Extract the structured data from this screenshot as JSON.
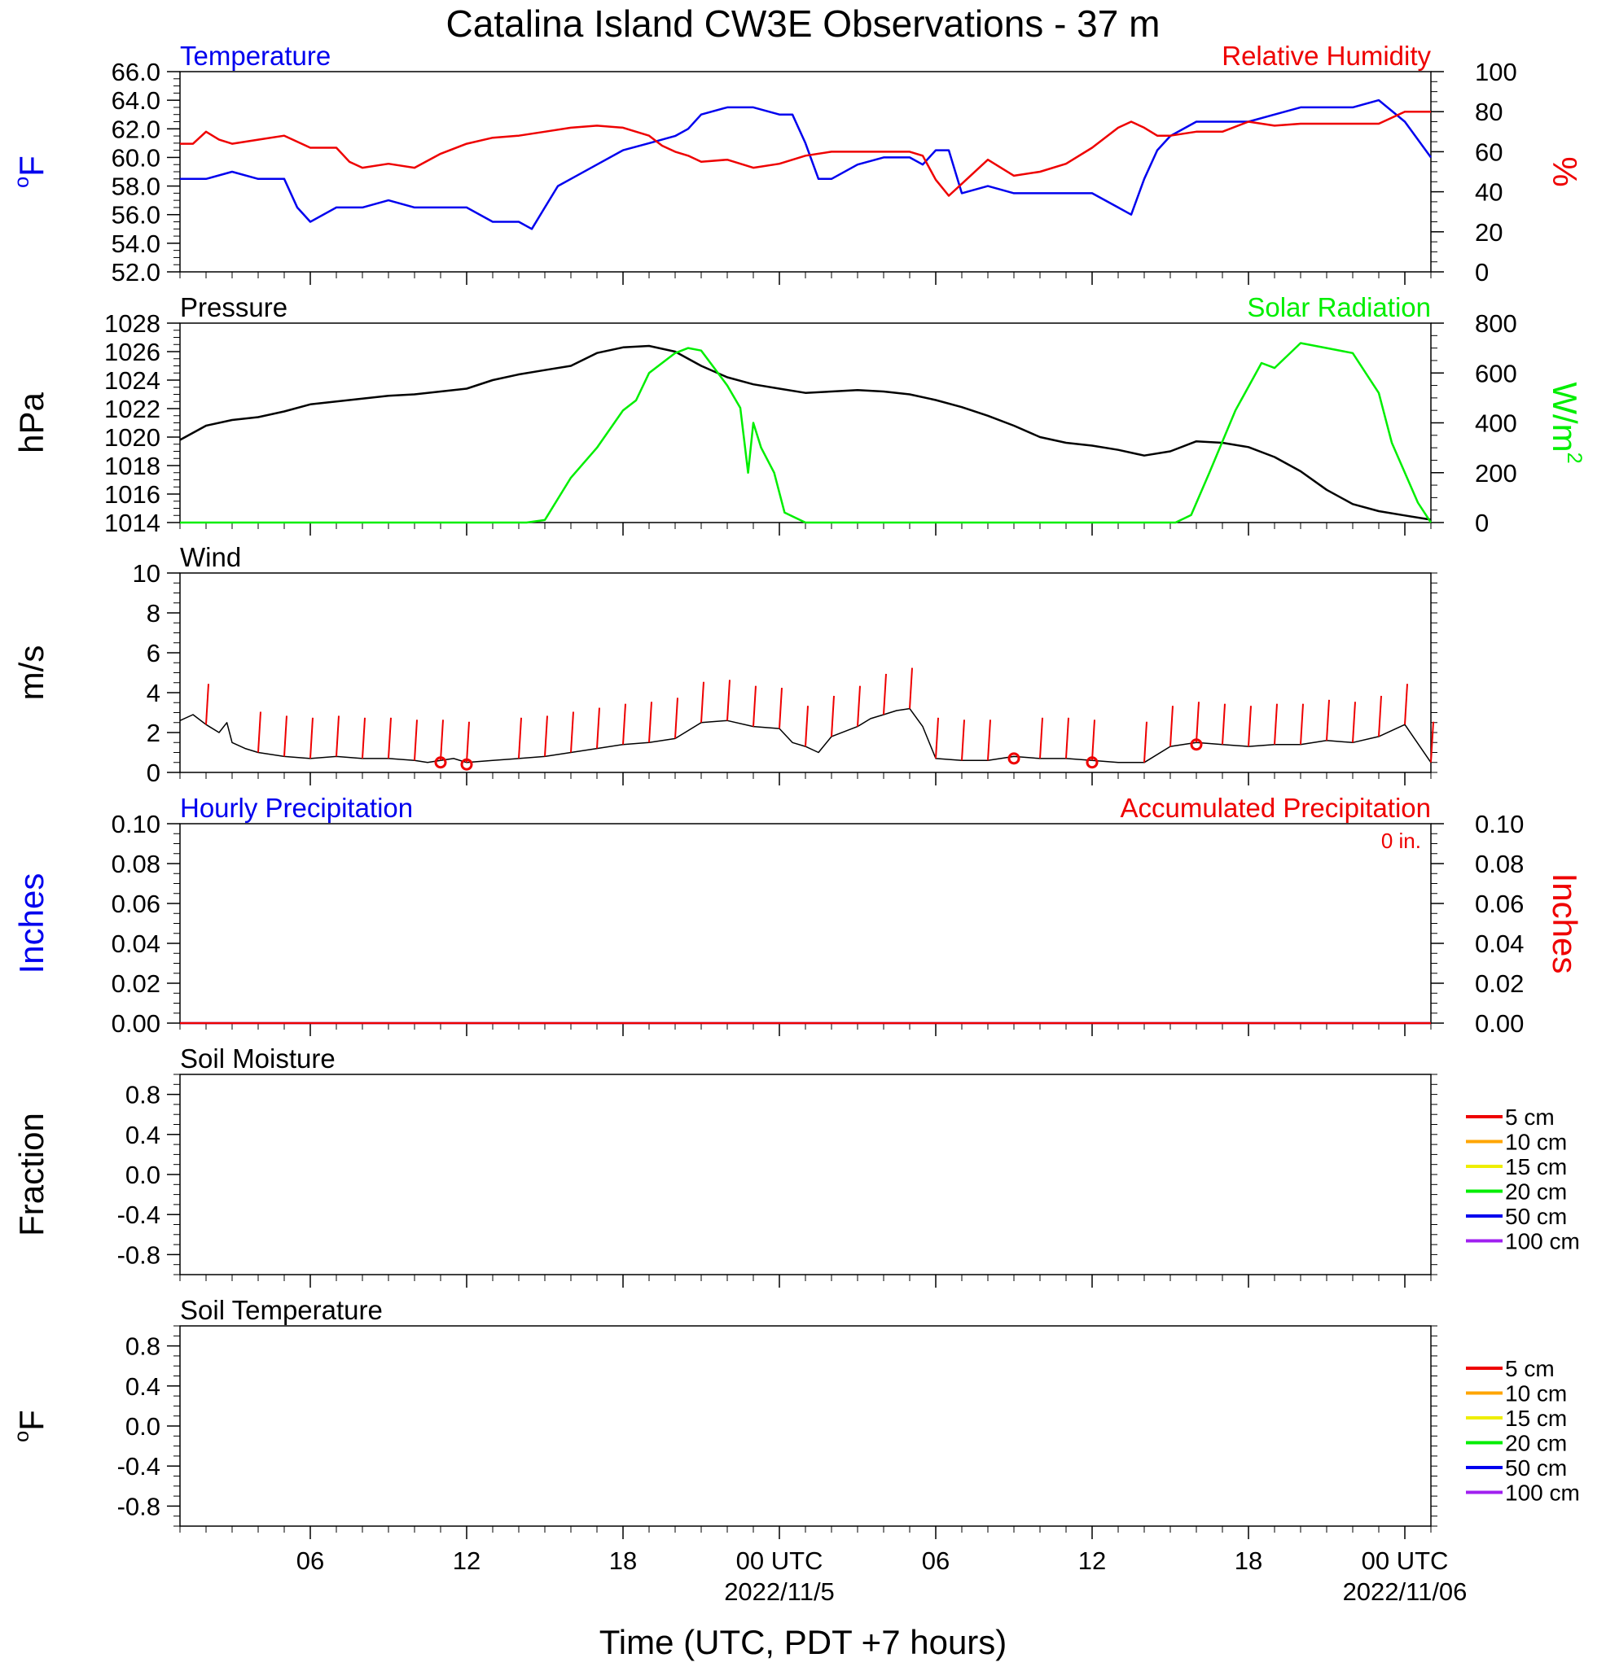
{
  "title": "Catalina Island CW3E Observations - 37 m",
  "x_axis": {
    "title": "Time (UTC, PDT +7 hours)",
    "range_hours": [
      0,
      48
    ],
    "ticks": [
      {
        "hour": 5,
        "label": "06",
        "sublabel": ""
      },
      {
        "hour": 11,
        "label": "12",
        "sublabel": ""
      },
      {
        "hour": 17,
        "label": "18",
        "sublabel": ""
      },
      {
        "hour": 23,
        "label": "00 UTC",
        "sublabel": "2022/11/5"
      },
      {
        "hour": 29,
        "label": "06",
        "sublabel": ""
      },
      {
        "hour": 35,
        "label": "12",
        "sublabel": ""
      },
      {
        "hour": 41,
        "label": "18",
        "sublabel": ""
      },
      {
        "hour": 47,
        "label": "00 UTC",
        "sublabel": "2022/11/06"
      }
    ]
  },
  "colors": {
    "blue": "#0000ee",
    "red": "#ee0000",
    "green": "#00ee00",
    "black": "#000000"
  },
  "chart_data": [
    {
      "type": "line",
      "left_title": "Temperature",
      "right_title": "Relative Humidity",
      "left_unit": "°F",
      "right_unit": "%",
      "ylim_left": [
        52,
        66
      ],
      "ylim_right": [
        0,
        100
      ],
      "left_ticks": [
        "52.0",
        "54.0",
        "56.0",
        "58.0",
        "60.0",
        "62.0",
        "64.0",
        "66.0"
      ],
      "right_ticks": [
        "0",
        "20",
        "40",
        "60",
        "80",
        "100"
      ],
      "series": [
        {
          "name": "Temperature",
          "axis": "left",
          "color": "#0000ee",
          "x": [
            0,
            1,
            2,
            3,
            4,
            4.5,
            5,
            6,
            7,
            8,
            9,
            10,
            11,
            12,
            13,
            13.5,
            14,
            14.5,
            15,
            16,
            17,
            18,
            19,
            19.5,
            20,
            21,
            22,
            23,
            23.5,
            24,
            24.5,
            25,
            26,
            27,
            28,
            28.5,
            29,
            29.5,
            30,
            31,
            32,
            33,
            34,
            35,
            36,
            36.5,
            37,
            37.5,
            38,
            39,
            40,
            41,
            42,
            43,
            44,
            45,
            46,
            47,
            48
          ],
          "y": [
            58.5,
            58.5,
            59,
            58.5,
            58.5,
            56.5,
            55.5,
            56.5,
            56.5,
            57,
            56.5,
            56.5,
            56.5,
            55.5,
            55.5,
            55,
            56.5,
            58,
            58.5,
            59.5,
            60.5,
            61,
            61.5,
            62,
            63,
            63.5,
            63.5,
            63,
            63,
            61,
            58.5,
            58.5,
            59.5,
            60,
            60,
            59.5,
            60.5,
            60.5,
            57.5,
            58,
            57.5,
            57.5,
            57.5,
            57.5,
            56.5,
            56,
            58.5,
            60.5,
            61.5,
            62.5,
            62.5,
            62.5,
            63,
            63.5,
            63.5,
            63.5,
            64,
            62.5,
            60
          ]
        },
        {
          "name": "Relative Humidity",
          "axis": "right",
          "color": "#ee0000",
          "x": [
            0,
            0.5,
            1,
            1.5,
            2,
            3,
            4,
            4.5,
            5,
            6,
            6.5,
            7,
            8,
            9,
            10,
            11,
            12,
            13,
            14,
            15,
            16,
            17,
            18,
            18.5,
            19,
            19.5,
            20,
            21,
            22,
            23,
            24,
            25,
            26,
            27,
            28,
            28.5,
            29,
            29.5,
            30,
            31,
            32,
            33,
            34,
            35,
            36,
            36.5,
            37,
            37.5,
            38,
            39,
            40,
            41,
            42,
            43,
            44,
            45,
            46,
            47,
            48
          ],
          "y": [
            64,
            64,
            70,
            66,
            64,
            66,
            68,
            65,
            62,
            62,
            55,
            52,
            54,
            52,
            59,
            64,
            67,
            68,
            70,
            72,
            73,
            72,
            68,
            63,
            60,
            58,
            55,
            56,
            52,
            54,
            58,
            60,
            60,
            60,
            60,
            58,
            46,
            38,
            44,
            56,
            48,
            50,
            54,
            62,
            72,
            75,
            72,
            68,
            68,
            70,
            70,
            75,
            73,
            74,
            74,
            74,
            74,
            80,
            80
          ]
        },
        {
          "name": "",
          "axis": "left",
          "color": "#ee0000",
          "x": [],
          "y": []
        }
      ]
    },
    {
      "type": "line",
      "left_title": "Pressure",
      "right_title": "Solar Radiation",
      "left_unit": "hPa",
      "right_unit": "W/m²",
      "ylim_left": [
        1014,
        1028
      ],
      "ylim_right": [
        0,
        800
      ],
      "left_ticks": [
        "1014",
        "1016",
        "1018",
        "1020",
        "1022",
        "1024",
        "1026",
        "1028"
      ],
      "right_ticks": [
        "0",
        "200",
        "400",
        "600",
        "800"
      ],
      "series": [
        {
          "name": "Pressure",
          "axis": "left",
          "color": "#000000",
          "x": [
            0,
            1,
            2,
            3,
            4,
            5,
            6,
            7,
            8,
            9,
            10,
            11,
            12,
            13,
            14,
            15,
            16,
            17,
            18,
            19,
            20,
            21,
            22,
            23,
            24,
            25,
            26,
            27,
            28,
            29,
            30,
            31,
            32,
            33,
            34,
            35,
            36,
            37,
            38,
            39,
            40,
            41,
            42,
            43,
            44,
            45,
            46,
            47,
            48
          ],
          "y": [
            1019.8,
            1020.8,
            1021.2,
            1021.4,
            1021.8,
            1022.3,
            1022.5,
            1022.7,
            1022.9,
            1023,
            1023.2,
            1023.4,
            1024,
            1024.4,
            1024.7,
            1025,
            1025.9,
            1026.3,
            1026.4,
            1026,
            1025,
            1024.2,
            1023.7,
            1023.4,
            1023.1,
            1023.2,
            1023.3,
            1023.2,
            1023,
            1022.6,
            1022.1,
            1021.5,
            1020.8,
            1020,
            1019.6,
            1019.4,
            1019.1,
            1018.7,
            1019,
            1019.7,
            1019.6,
            1019.3,
            1018.6,
            1017.6,
            1016.3,
            1015.3,
            1014.8,
            1014.5,
            1014.2
          ]
        },
        {
          "name": "Solar Radiation",
          "axis": "right",
          "color": "#00ee00",
          "x": [
            0,
            13.3,
            14,
            15,
            16,
            17,
            17.5,
            18,
            19,
            19.5,
            20,
            20.5,
            21,
            21.5,
            21.8,
            22,
            22.3,
            22.8,
            23.2,
            24,
            33,
            38.2,
            38.8,
            39.5,
            40.5,
            41.5,
            42,
            43,
            44,
            45,
            46,
            46.5,
            47.5,
            48
          ],
          "y": [
            0,
            0,
            10,
            180,
            300,
            450,
            490,
            600,
            680,
            700,
            690,
            620,
            550,
            460,
            200,
            400,
            300,
            200,
            40,
            0,
            0,
            0,
            30,
            200,
            450,
            640,
            620,
            720,
            700,
            680,
            520,
            320,
            80,
            0
          ]
        }
      ]
    },
    {
      "type": "line",
      "left_title": "Wind",
      "left_unit": "m/s",
      "ylim_left": [
        0,
        10
      ],
      "left_ticks": [
        "0",
        "2",
        "4",
        "6",
        "8",
        "10"
      ],
      "series": [
        {
          "name": "Wind",
          "axis": "left",
          "color": "#000000",
          "x": [
            0,
            0.5,
            1,
            1.5,
            1.8,
            2,
            2.5,
            3,
            4,
            5,
            6,
            7,
            8,
            9,
            9.5,
            10,
            10.5,
            11,
            12,
            13,
            14,
            15,
            16,
            17,
            18,
            19,
            20,
            21,
            22,
            23,
            23.5,
            24,
            24.5,
            25,
            26,
            26.5,
            27,
            27.5,
            28,
            28.5,
            29,
            30,
            31,
            32,
            33,
            34,
            35,
            36,
            37,
            38,
            39,
            40,
            41,
            42,
            43,
            44,
            45,
            46,
            47,
            48
          ],
          "y": [
            2.6,
            2.9,
            2.4,
            2,
            2.5,
            1.5,
            1.2,
            1,
            0.8,
            0.7,
            0.8,
            0.7,
            0.7,
            0.6,
            0.5,
            0.6,
            0.7,
            0.5,
            0.6,
            0.7,
            0.8,
            1,
            1.2,
            1.4,
            1.5,
            1.7,
            2.5,
            2.6,
            2.3,
            2.2,
            1.5,
            1.3,
            1,
            1.8,
            2.3,
            2.7,
            2.9,
            3.1,
            3.2,
            2.3,
            0.7,
            0.6,
            0.6,
            0.8,
            0.7,
            0.7,
            0.6,
            0.5,
            0.5,
            1.3,
            1.5,
            1.4,
            1.3,
            1.4,
            1.4,
            1.6,
            1.5,
            1.8,
            2.4,
            0.5
          ]
        }
      ],
      "barbs_hours": [
        0,
        2,
        3,
        4,
        5,
        6,
        7,
        8,
        9,
        10,
        12,
        13,
        14,
        15,
        16,
        17,
        18,
        19,
        20,
        21,
        22,
        23,
        24,
        25,
        26,
        27,
        28,
        29,
        30,
        32,
        33,
        34,
        36,
        37,
        38,
        39,
        40,
        41,
        42,
        43,
        44,
        45,
        46,
        47
      ],
      "calm_hours": [
        10,
        11,
        32,
        35,
        39
      ]
    },
    {
      "type": "line",
      "left_title": "Hourly Precipitation",
      "right_title": "Accumulated Precipitation",
      "annotation": "0 in.",
      "left_unit": "Inches",
      "right_unit": "Inches",
      "ylim_left": [
        0,
        0.1
      ],
      "ylim_right": [
        0,
        0.1
      ],
      "left_ticks": [
        "0.00",
        "0.02",
        "0.04",
        "0.06",
        "0.08",
        "0.10"
      ],
      "right_ticks": [
        "0.00",
        "0.02",
        "0.04",
        "0.06",
        "0.08",
        "0.10"
      ],
      "series": [
        {
          "name": "Hourly Precipitation",
          "axis": "left",
          "color": "#0000ee",
          "x": [
            0,
            48
          ],
          "y": [
            0,
            0
          ]
        },
        {
          "name": "Accumulated Precipitation",
          "axis": "right",
          "color": "#ee0000",
          "x": [
            0,
            48
          ],
          "y": [
            0,
            0
          ]
        }
      ]
    },
    {
      "type": "line",
      "left_title": "Soil Moisture",
      "left_unit": "Fraction",
      "ylim_left": [
        -1,
        1
      ],
      "left_ticks": [
        "-0.8",
        "-0.4",
        "0.0",
        "0.4",
        "0.8"
      ],
      "legend": [
        {
          "label": "5 cm",
          "color": "#ee0000"
        },
        {
          "label": "10 cm",
          "color": "#ffa500"
        },
        {
          "label": "15 cm",
          "color": "#eeee00"
        },
        {
          "label": "20 cm",
          "color": "#00ee00"
        },
        {
          "label": "50 cm",
          "color": "#0000ee"
        },
        {
          "label": "100 cm",
          "color": "#a020f0"
        }
      ],
      "series": []
    },
    {
      "type": "line",
      "left_title": "Soil Temperature",
      "left_unit": "°F",
      "ylim_left": [
        -1,
        1
      ],
      "left_ticks": [
        "-0.8",
        "-0.4",
        "0.0",
        "0.4",
        "0.8"
      ],
      "legend": [
        {
          "label": "5 cm",
          "color": "#ee0000"
        },
        {
          "label": "10 cm",
          "color": "#ffa500"
        },
        {
          "label": "15 cm",
          "color": "#eeee00"
        },
        {
          "label": "20 cm",
          "color": "#00ee00"
        },
        {
          "label": "50 cm",
          "color": "#0000ee"
        },
        {
          "label": "100 cm",
          "color": "#a020f0"
        }
      ],
      "series": []
    }
  ]
}
